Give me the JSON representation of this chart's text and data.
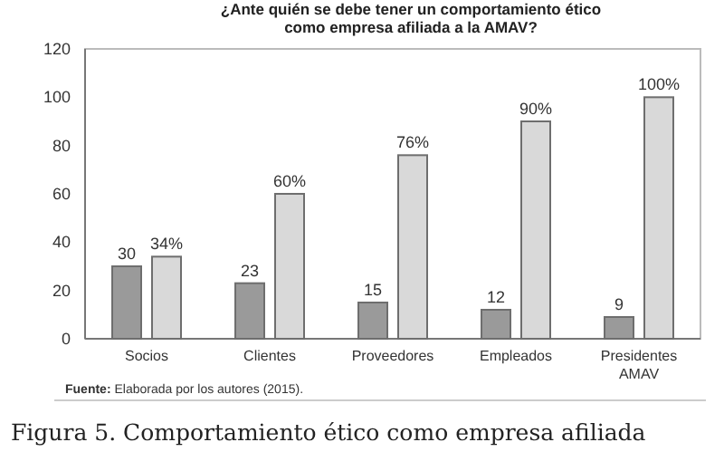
{
  "chart_data": {
    "type": "bar",
    "title": "¿Ante quién se debe tener un comportamiento ético como empresa afiliada a la AMAV?",
    "categories": [
      "Socios",
      "Clientes",
      "Proveedores",
      "Empleados",
      "Presidentes AMAV"
    ],
    "series": [
      {
        "color": "#9a9a9a",
        "values": [
          30,
          23,
          15,
          12,
          9
        ],
        "value_labels": [
          "30",
          "23",
          "15",
          "12",
          "9"
        ]
      },
      {
        "color": "#d9d9d9",
        "values": [
          34,
          60,
          76,
          90,
          100
        ],
        "value_labels": [
          "34%",
          "60%",
          "76%",
          "90%",
          "100%"
        ]
      }
    ],
    "ylim": [
      0,
      120
    ],
    "yticks": [
      0,
      20,
      40,
      60,
      80,
      100,
      120
    ],
    "grid": false,
    "annotations": [
      "Fuente: Elaborada por los autores (2015).",
      "Figura 5. Comportamiento ético como empresa afiliada"
    ]
  }
}
